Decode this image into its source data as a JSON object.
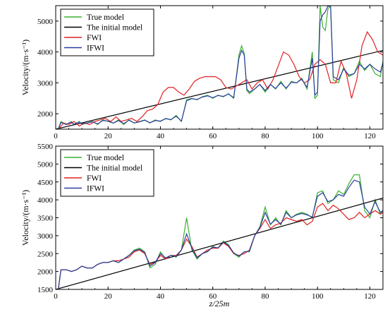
{
  "chart_data": [
    {
      "type": "line",
      "ylabel": "Velocity/(m·s⁻¹)",
      "xlabel": "",
      "xlim": [
        0,
        125
      ],
      "ylim": [
        1500,
        5500
      ],
      "xticks": [
        "0",
        "20",
        "40",
        "60",
        "80",
        "100",
        "120"
      ],
      "yticks": [
        "2000",
        "3000",
        "4000",
        "5000"
      ],
      "legend_position": "top-left",
      "series": [
        {
          "name": "True model",
          "color": "#3cb030",
          "x": [
            1,
            2,
            3,
            4,
            5,
            6,
            7,
            8,
            9,
            10,
            12,
            14,
            16,
            18,
            20,
            22,
            24,
            26,
            28,
            30,
            32,
            34,
            36,
            38,
            40,
            42,
            44,
            46,
            48,
            50,
            52,
            54,
            56,
            58,
            60,
            62,
            64,
            66,
            68,
            70,
            71,
            72,
            73,
            74,
            76,
            78,
            80,
            82,
            84,
            86,
            88,
            90,
            92,
            94,
            96,
            98,
            99,
            100,
            101,
            102,
            103,
            104,
            105,
            106,
            108,
            110,
            112,
            114,
            116,
            118,
            120,
            122,
            124,
            125
          ],
          "y": [
            1500,
            1750,
            1700,
            1650,
            1700,
            1750,
            1650,
            1700,
            1750,
            1650,
            1700,
            1750,
            1650,
            1800,
            1750,
            1700,
            1800,
            1650,
            1800,
            1700,
            1750,
            1800,
            1700,
            1800,
            1750,
            1850,
            1800,
            1950,
            1750,
            2450,
            2500,
            2450,
            2550,
            2600,
            2500,
            2600,
            2550,
            2650,
            2500,
            3900,
            4200,
            3950,
            2750,
            2650,
            2800,
            2950,
            2700,
            2950,
            2800,
            3050,
            2800,
            3050,
            3000,
            3150,
            2800,
            4000,
            2500,
            2600,
            5500,
            4800,
            4700,
            5400,
            5500,
            3100,
            3000,
            3500,
            3200,
            3300,
            3700,
            3400,
            3600,
            3300,
            3200,
            3700
          ]
        },
        {
          "name": "The initial model",
          "color": "#000000",
          "x": [
            0,
            125
          ],
          "y": [
            1500,
            4050
          ]
        },
        {
          "name": "FWI",
          "color": "#e02020",
          "x": [
            1,
            3,
            5,
            7,
            9,
            11,
            13,
            15,
            17,
            19,
            21,
            23,
            25,
            27,
            29,
            31,
            33,
            35,
            37,
            39,
            41,
            43,
            45,
            47,
            49,
            51,
            53,
            55,
            57,
            59,
            61,
            63,
            65,
            67,
            69,
            71,
            73,
            75,
            77,
            79,
            81,
            83,
            85,
            87,
            89,
            91,
            93,
            95,
            97,
            99,
            101,
            103,
            105,
            107,
            109,
            111,
            113,
            115,
            117,
            119,
            121,
            123,
            125
          ],
          "y": [
            1500,
            1700,
            1650,
            1750,
            1600,
            1700,
            1650,
            1750,
            1800,
            1850,
            1750,
            1900,
            1750,
            1800,
            1850,
            1750,
            1900,
            2100,
            2150,
            2300,
            2700,
            2850,
            2850,
            2700,
            2600,
            2800,
            3050,
            3150,
            3200,
            3200,
            3200,
            3100,
            2850,
            2800,
            2900,
            3000,
            3100,
            2800,
            3000,
            3100,
            2800,
            3100,
            3550,
            4000,
            3900,
            3600,
            3200,
            3000,
            3100,
            3600,
            3750,
            3600,
            3000,
            3000,
            3700,
            3300,
            2500,
            3100,
            4200,
            4650,
            4400,
            4000,
            3900
          ]
        },
        {
          "name": "IFWI",
          "color": "#2a3fa0",
          "x": [
            1,
            2,
            3,
            4,
            5,
            6,
            7,
            8,
            9,
            10,
            12,
            14,
            16,
            18,
            20,
            22,
            24,
            26,
            28,
            30,
            32,
            34,
            36,
            38,
            40,
            42,
            44,
            46,
            48,
            50,
            52,
            54,
            56,
            58,
            60,
            62,
            64,
            66,
            68,
            70,
            71,
            72,
            73,
            74,
            76,
            78,
            80,
            82,
            84,
            86,
            88,
            90,
            92,
            94,
            96,
            98,
            99,
            100,
            101,
            102,
            103,
            104,
            105,
            106,
            108,
            110,
            112,
            114,
            116,
            118,
            120,
            122,
            124,
            125
          ],
          "y": [
            1500,
            1720,
            1690,
            1650,
            1700,
            1720,
            1660,
            1700,
            1730,
            1680,
            1700,
            1740,
            1670,
            1780,
            1760,
            1700,
            1780,
            1680,
            1790,
            1700,
            1740,
            1790,
            1710,
            1780,
            1760,
            1840,
            1810,
            1920,
            1760,
            2420,
            2490,
            2460,
            2540,
            2580,
            2520,
            2590,
            2560,
            2640,
            2520,
            3800,
            4050,
            3900,
            2800,
            2700,
            2800,
            2950,
            2750,
            2950,
            2820,
            3000,
            2830,
            3020,
            3000,
            3120,
            2850,
            3800,
            2600,
            2700,
            5000,
            5200,
            5300,
            5500,
            5450,
            3200,
            3100,
            3450,
            3250,
            3300,
            3600,
            3450,
            3600,
            3450,
            3350,
            3650
          ]
        }
      ]
    },
    {
      "type": "line",
      "ylabel": "Velocity/(m·s⁻¹)",
      "xlabel": "z/25m",
      "xlim": [
        0,
        125
      ],
      "ylim": [
        1500,
        5500
      ],
      "xticks": [
        "0",
        "20",
        "40",
        "60",
        "80",
        "100",
        "120"
      ],
      "yticks": [
        "1500",
        "2000",
        "2500",
        "3000",
        "3500",
        "4000",
        "4500",
        "5000",
        "5500"
      ],
      "legend_position": "top-left",
      "series": [
        {
          "name": "True model",
          "color": "#3cb030",
          "x": [
            1,
            2,
            4,
            6,
            8,
            10,
            12,
            14,
            16,
            18,
            20,
            22,
            24,
            26,
            28,
            30,
            32,
            34,
            36,
            38,
            40,
            42,
            44,
            46,
            48,
            50,
            52,
            54,
            56,
            58,
            60,
            62,
            64,
            66,
            68,
            70,
            72,
            74,
            76,
            78,
            80,
            82,
            84,
            86,
            88,
            90,
            92,
            94,
            96,
            98,
            100,
            102,
            104,
            106,
            108,
            110,
            112,
            114,
            116,
            118,
            120,
            122,
            124,
            125
          ],
          "y": [
            1500,
            2050,
            2050,
            2000,
            2050,
            2150,
            2100,
            2100,
            2200,
            2250,
            2250,
            2300,
            2250,
            2350,
            2450,
            2600,
            2650,
            2550,
            2100,
            2200,
            2550,
            2350,
            2450,
            2400,
            2600,
            3500,
            2600,
            2350,
            2500,
            2550,
            2700,
            2650,
            2850,
            2750,
            2500,
            2400,
            2550,
            2550,
            3000,
            3250,
            3800,
            3300,
            3500,
            3300,
            3700,
            3500,
            3600,
            3650,
            3600,
            3500,
            4200,
            4250,
            3900,
            4000,
            4250,
            4150,
            4450,
            4700,
            4700,
            3700,
            3500,
            4000,
            3600,
            3700
          ]
        },
        {
          "name": "The initial model",
          "color": "#000000",
          "x": [
            0,
            125
          ],
          "y": [
            1500,
            4050
          ]
        },
        {
          "name": "FWI",
          "color": "#e02020",
          "x": [
            1,
            2,
            4,
            6,
            8,
            10,
            12,
            14,
            16,
            18,
            20,
            22,
            24,
            26,
            28,
            30,
            32,
            34,
            36,
            38,
            40,
            42,
            44,
            46,
            48,
            50,
            52,
            54,
            56,
            58,
            60,
            62,
            64,
            66,
            68,
            70,
            72,
            74,
            76,
            78,
            80,
            82,
            84,
            86,
            88,
            90,
            92,
            94,
            96,
            98,
            100,
            102,
            104,
            106,
            108,
            110,
            112,
            114,
            116,
            118,
            120,
            122,
            124,
            125
          ],
          "y": [
            1500,
            2050,
            2050,
            2000,
            2050,
            2150,
            2100,
            2100,
            2200,
            2250,
            2250,
            2300,
            2300,
            2350,
            2400,
            2550,
            2600,
            2500,
            2200,
            2250,
            2450,
            2350,
            2450,
            2450,
            2600,
            2900,
            2700,
            2400,
            2500,
            2600,
            2650,
            2650,
            2800,
            2700,
            2500,
            2450,
            2500,
            2600,
            3000,
            3200,
            3450,
            3200,
            3300,
            3350,
            3500,
            3450,
            3400,
            3450,
            3300,
            3400,
            3800,
            3900,
            3700,
            3850,
            3750,
            3600,
            3450,
            3500,
            3650,
            3500,
            3600,
            3700,
            3600,
            3650
          ]
        },
        {
          "name": "IFWI",
          "color": "#2a3fa0",
          "x": [
            1,
            2,
            4,
            6,
            8,
            10,
            12,
            14,
            16,
            18,
            20,
            22,
            24,
            26,
            28,
            30,
            32,
            34,
            36,
            38,
            40,
            42,
            44,
            46,
            48,
            50,
            52,
            54,
            56,
            58,
            60,
            62,
            64,
            66,
            68,
            70,
            72,
            74,
            76,
            78,
            80,
            82,
            84,
            86,
            88,
            90,
            92,
            94,
            96,
            98,
            100,
            102,
            104,
            106,
            108,
            110,
            112,
            114,
            116,
            118,
            120,
            122,
            124,
            125
          ],
          "y": [
            1500,
            2050,
            2050,
            2000,
            2050,
            2150,
            2100,
            2100,
            2200,
            2250,
            2250,
            2300,
            2250,
            2350,
            2450,
            2580,
            2620,
            2530,
            2150,
            2250,
            2500,
            2380,
            2450,
            2420,
            2600,
            3050,
            2650,
            2380,
            2500,
            2560,
            2680,
            2660,
            2820,
            2730,
            2520,
            2430,
            2550,
            2570,
            3000,
            3230,
            3650,
            3320,
            3450,
            3320,
            3650,
            3500,
            3580,
            3620,
            3580,
            3520,
            4100,
            4200,
            3950,
            4000,
            4150,
            4100,
            4350,
            4550,
            4500,
            3800,
            3600,
            3950,
            3650,
            3700
          ]
        }
      ]
    }
  ]
}
